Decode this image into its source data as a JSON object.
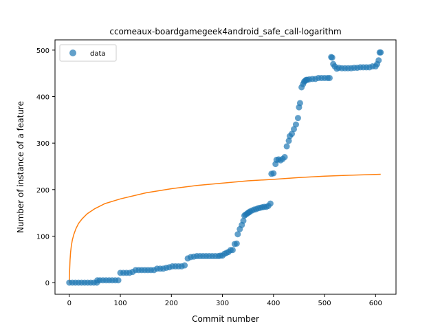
{
  "chart_data": {
    "type": "scatter",
    "title": "ccomeaux-boardgamegeek4android_safe_call-logarithm",
    "xlabel": "Commit number",
    "ylabel": "Number of instance of a feature",
    "xlim": [
      -28,
      640
    ],
    "ylim": [
      -25,
      522
    ],
    "xticks": [
      0,
      100,
      200,
      300,
      400,
      500,
      600
    ],
    "yticks": [
      0,
      100,
      200,
      300,
      400,
      500
    ],
    "legend": {
      "position": "upper-left",
      "entries": [
        "data"
      ]
    },
    "colors": {
      "data": "#1f77b4",
      "fit": "#ff7f0e"
    },
    "series": [
      {
        "name": "data",
        "kind": "scatter",
        "x": [
          0,
          6,
          12,
          18,
          24,
          30,
          36,
          42,
          48,
          54,
          55,
          60,
          66,
          72,
          78,
          84,
          90,
          96,
          100,
          106,
          112,
          118,
          124,
          130,
          136,
          142,
          148,
          154,
          160,
          166,
          172,
          178,
          184,
          190,
          196,
          202,
          208,
          214,
          220,
          226,
          232,
          238,
          244,
          250,
          256,
          262,
          268,
          274,
          280,
          286,
          292,
          296,
          300,
          304,
          308,
          312,
          316,
          320,
          324,
          328,
          330,
          334,
          338,
          341,
          343,
          345,
          348,
          350,
          352,
          354,
          358,
          362,
          366,
          370,
          374,
          378,
          382,
          386,
          390,
          394,
          396,
          400,
          404,
          406,
          410,
          414,
          418,
          422,
          426,
          430,
          432,
          436,
          440,
          444,
          448,
          450,
          452,
          455,
          458,
          460,
          462,
          464,
          466,
          470,
          476,
          482,
          488,
          494,
          500,
          506,
          510,
          513,
          515,
          517,
          520,
          524,
          528,
          534,
          540,
          546,
          552,
          558,
          564,
          570,
          576,
          582,
          588,
          594,
          600,
          603,
          606,
          608,
          610
        ],
        "y": [
          0,
          0,
          0,
          0,
          0,
          0,
          0,
          0,
          0,
          0,
          5,
          5,
          5,
          5,
          5,
          5,
          5,
          5,
          21,
          21,
          21,
          21,
          23,
          27,
          27,
          27,
          27,
          27,
          27,
          27,
          30,
          30,
          30,
          32,
          33,
          35,
          35,
          35,
          35,
          37,
          52,
          55,
          56,
          57,
          57,
          57,
          57,
          57,
          57,
          57,
          57,
          58,
          58,
          62,
          64,
          66,
          70,
          70,
          83,
          84,
          104,
          115,
          124,
          133,
          144,
          146,
          148,
          150,
          151,
          153,
          155,
          157,
          158,
          160,
          161,
          162,
          163,
          163,
          165,
          170,
          234,
          235,
          255,
          264,
          265,
          263,
          266,
          270,
          293,
          305,
          315,
          320,
          330,
          340,
          354,
          377,
          386,
          420,
          427,
          432,
          434,
          436,
          436,
          437,
          438,
          438,
          440,
          440,
          440,
          440,
          440,
          485,
          484,
          470,
          465,
          460,
          462,
          461,
          461,
          461,
          461,
          462,
          462,
          463,
          463,
          463,
          463,
          465,
          465,
          470,
          478,
          495,
          495
        ]
      },
      {
        "name": "",
        "kind": "line",
        "model": "logarithm",
        "x": [
          0,
          0.6,
          1.5,
          2.5,
          4,
          6,
          9,
          13,
          18,
          25,
          35,
          50,
          70,
          100,
          150,
          200,
          250,
          300,
          350,
          400,
          450,
          500,
          550,
          610
        ],
        "y": [
          0,
          25,
          49,
          65,
          79,
          92,
          104,
          116,
          127,
          137,
          148,
          159,
          170,
          180,
          193,
          202,
          209,
          214,
          219,
          222,
          226,
          229,
          231,
          233
        ]
      }
    ]
  }
}
